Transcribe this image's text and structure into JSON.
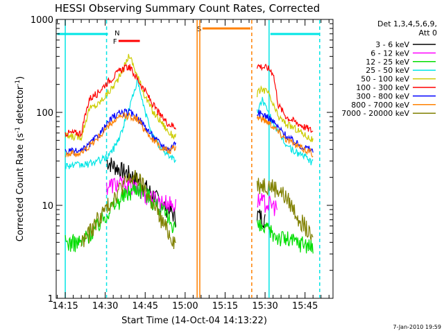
{
  "chart_data": {
    "type": "line",
    "title": "HESSI Observing Summary Count Rates, Corrected",
    "xlabel": "Start Time (14-Oct-04 14:13:22)",
    "ylabel": "Corrected Count Rate (s",
    "ylabel_sup": "-1",
    "ylabel_mid": " detector",
    "ylabel_sup2": "-1",
    "ylabel_end": ")",
    "yscale": "log",
    "ylim": [
      1,
      1000
    ],
    "xlim_min": [
      -3.4,
      62.0
    ],
    "ytick_labels": [
      "1",
      "10",
      "100",
      "1000"
    ],
    "ytick_values": [
      1,
      10,
      100,
      1000
    ],
    "xtick_labels": [
      "14:15",
      "14:30",
      "14:45",
      "15:00",
      "15:15",
      "15:30",
      "15:45"
    ],
    "xtick_values": [
      0,
      15,
      30,
      45,
      60,
      75,
      90
    ],
    "legend": {
      "header1": "Det 1,3,4,5,6,9,",
      "header2": "Att 0",
      "entries": [
        {
          "label": "3 - 6 keV",
          "color": "#000000"
        },
        {
          "label": "6 - 12 keV",
          "color": "#ff00ff"
        },
        {
          "label": "12 - 25 keV",
          "color": "#00dd00"
        },
        {
          "label": "25 - 50 keV",
          "color": "#00e5e5"
        },
        {
          "label": "50 - 100 keV",
          "color": "#cccc00"
        },
        {
          "label": "100 - 300 keV",
          "color": "#ff0000"
        },
        {
          "label": "300 - 800 keV",
          "color": "#0000ff"
        },
        {
          "label": "800 - 7000 keV",
          "color": "#ff8000"
        },
        {
          "label": "7000 - 20000 keV",
          "color": "#808000"
        }
      ]
    },
    "flags": [
      {
        "label": "N",
        "color": "#00e5e5",
        "segment": [
          16,
          24
        ]
      },
      {
        "label": "F",
        "color": "#ff0000",
        "segment": [
          22,
          27
        ]
      },
      {
        "label": "S",
        "color": "#ff8000",
        "segment": [
          50,
          70
        ]
      }
    ],
    "series": [
      {
        "name": "3 - 6 keV",
        "color": "#000000",
        "x": [
          15.5,
          18,
          21,
          24,
          27,
          30,
          33,
          36,
          39,
          41.5
        ],
        "y": [
          30,
          27,
          24,
          22,
          19,
          16,
          13,
          10.5,
          9,
          7.5
        ],
        "x2": [
          72,
          74,
          75
        ],
        "y2": [
          8,
          7.5,
          7
        ]
      },
      {
        "name": "6 - 12 keV",
        "color": "#ff00ff",
        "x": [
          15.5,
          18,
          21,
          24,
          27,
          30,
          33,
          36,
          39,
          41.5
        ],
        "y": [
          16,
          17,
          17,
          16.5,
          15,
          13,
          12,
          11,
          10.5,
          10
        ],
        "x2": [
          72,
          74,
          76,
          78,
          79.5
        ],
        "y2": [
          11.5,
          11,
          10.5,
          10,
          9.5
        ]
      },
      {
        "name": "12 - 25 keV",
        "color": "#00dd00",
        "x": [
          0,
          6,
          9,
          12,
          15,
          18,
          21,
          24,
          27,
          30,
          33,
          36,
          39,
          41.5
        ],
        "y": [
          4,
          4,
          5,
          6,
          8,
          10,
          12,
          14,
          16,
          14,
          11,
          9,
          7,
          6
        ],
        "x2": [
          72,
          75,
          78,
          81,
          84,
          87,
          90,
          93
        ],
        "y2": [
          6,
          5.5,
          5,
          4.5,
          4.3,
          4,
          4,
          3.5
        ]
      },
      {
        "name": "25 - 50 keV",
        "color": "#00e5e5",
        "x": [
          0,
          6,
          9,
          12,
          15,
          18,
          21,
          24,
          27,
          30,
          33,
          36,
          39,
          41.5
        ],
        "y": [
          27,
          27,
          28,
          30,
          32,
          40,
          60,
          110,
          220,
          100,
          55,
          40,
          35,
          30
        ],
        "x2": [
          72,
          74,
          76,
          78,
          80,
          83,
          86,
          89,
          92,
          93
        ],
        "y2": [
          100,
          140,
          100,
          80,
          60,
          45,
          38,
          35,
          30,
          28
        ]
      },
      {
        "name": "50 - 100 keV",
        "color": "#cccc00",
        "x": [
          0,
          6,
          9,
          12,
          15,
          18,
          21,
          24,
          27,
          30,
          33,
          36,
          39,
          41.5
        ],
        "y": [
          55,
          55,
          110,
          120,
          150,
          190,
          260,
          420,
          250,
          150,
          100,
          80,
          60,
          55
        ],
        "x2": [
          72,
          74,
          76,
          78,
          80,
          83,
          86,
          89,
          92,
          93
        ],
        "y2": [
          160,
          180,
          165,
          120,
          90,
          75,
          68,
          60,
          52,
          50
        ]
      },
      {
        "name": "100 - 300 keV",
        "color": "#ff0000",
        "x": [
          0,
          6,
          9,
          12,
          15,
          18,
          21,
          24,
          27,
          30,
          33,
          36,
          39,
          41.5
        ],
        "y": [
          60,
          60,
          140,
          160,
          200,
          240,
          290,
          310,
          230,
          170,
          120,
          90,
          75,
          70
        ],
        "x2": [
          72,
          74,
          76,
          78,
          80,
          83,
          86,
          89,
          92,
          93
        ],
        "y2": [
          320,
          310,
          300,
          270,
          120,
          90,
          80,
          72,
          65,
          62
        ]
      },
      {
        "name": "300 - 800 keV",
        "color": "#0000ff",
        "x": [
          0,
          6,
          9,
          12,
          15,
          18,
          21,
          24,
          27,
          30,
          33,
          36,
          39,
          41.5
        ],
        "y": [
          38,
          38,
          45,
          55,
          70,
          90,
          100,
          100,
          90,
          70,
          55,
          45,
          40,
          48
        ],
        "x2": [
          72,
          74,
          76,
          78,
          80,
          83,
          86,
          89,
          92,
          93
        ],
        "y2": [
          100,
          95,
          90,
          80,
          68,
          56,
          48,
          43,
          40,
          38
        ]
      },
      {
        "name": "800 - 7000 keV",
        "color": "#ff8000",
        "x": [
          0,
          6,
          9,
          12,
          15,
          18,
          21,
          24,
          27,
          30,
          33,
          36,
          39,
          41.5
        ],
        "y": [
          36,
          36,
          44,
          52,
          65,
          80,
          90,
          92,
          85,
          65,
          50,
          42,
          38,
          42
        ],
        "x2": [
          72,
          74,
          76,
          78,
          80,
          83,
          86,
          89,
          92,
          93
        ],
        "y2": [
          90,
          85,
          80,
          72,
          62,
          52,
          45,
          41,
          38,
          36
        ]
      },
      {
        "name": "7000 - 20000 keV",
        "color": "#808000",
        "x": [
          6,
          9,
          12,
          15,
          18,
          21,
          24,
          27,
          30,
          33,
          36,
          39,
          41.5
        ],
        "y": [
          4,
          5,
          7,
          9,
          12,
          16,
          19,
          20,
          15,
          10,
          7,
          5,
          4
        ],
        "x2": [
          72,
          75,
          78,
          81,
          84,
          87,
          90,
          93
        ],
        "y2": [
          17,
          17,
          16,
          14,
          11,
          8,
          6,
          4
        ]
      }
    ],
    "grid": false,
    "legend_placement": "right"
  },
  "timestamp": "7-Jan-2010 19:59"
}
